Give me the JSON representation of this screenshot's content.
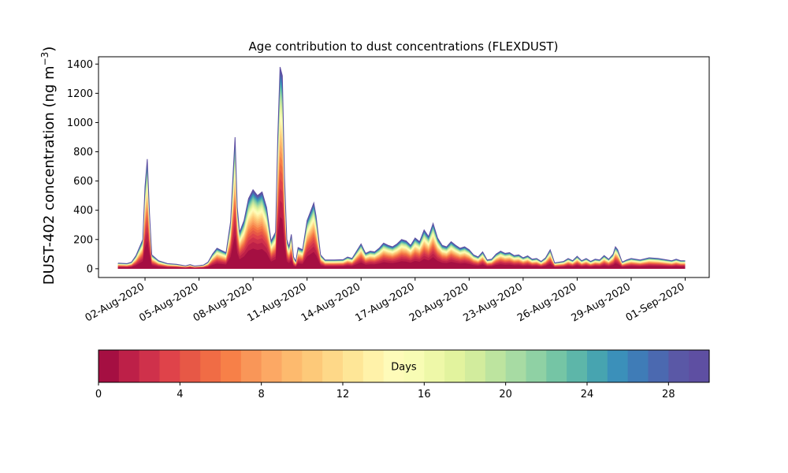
{
  "chart_data": {
    "type": "area",
    "stacked": true,
    "title": "Age contribution to dust concentrations (FLEXDUST)",
    "ylabel": "DUST-402 concentration (ng m",
    "ylabel_sup": "−3",
    "ylabel_close": ")",
    "ylim": [
      -60,
      1450
    ],
    "yticks": [
      "0",
      "200",
      "400",
      "600",
      "800",
      "1000",
      "1200",
      "1400"
    ],
    "xlim": [
      "2020-07-30T10:00",
      "2020-09-02T08:00"
    ],
    "xticks": [
      {
        "date": "2020-08-02",
        "label": "02-Aug-2020"
      },
      {
        "date": "2020-08-05",
        "label": "05-Aug-2020"
      },
      {
        "date": "2020-08-08",
        "label": "08-Aug-2020"
      },
      {
        "date": "2020-08-11",
        "label": "11-Aug-2020"
      },
      {
        "date": "2020-08-14",
        "label": "14-Aug-2020"
      },
      {
        "date": "2020-08-17",
        "label": "17-Aug-2020"
      },
      {
        "date": "2020-08-20",
        "label": "20-Aug-2020"
      },
      {
        "date": "2020-08-23",
        "label": "23-Aug-2020"
      },
      {
        "date": "2020-08-26",
        "label": "26-Aug-2020"
      },
      {
        "date": "2020-08-29",
        "label": "29-Aug-2020"
      },
      {
        "date": "2020-09-01",
        "label": "01-Sep-2020"
      }
    ],
    "total_series": [
      [
        "2020-07-31T12:00",
        38
      ],
      [
        "2020-08-01T00:00",
        35
      ],
      [
        "2020-08-01T06:00",
        45
      ],
      [
        "2020-08-01T12:00",
        90
      ],
      [
        "2020-08-01T21:00",
        200
      ],
      [
        "2020-08-02T00:00",
        560
      ],
      [
        "2020-08-02T03:00",
        750
      ],
      [
        "2020-08-02T06:00",
        380
      ],
      [
        "2020-08-02T09:00",
        95
      ],
      [
        "2020-08-02T18:00",
        55
      ],
      [
        "2020-08-03T06:00",
        35
      ],
      [
        "2020-08-03T18:00",
        30
      ],
      [
        "2020-08-04T06:00",
        20
      ],
      [
        "2020-08-04T12:00",
        28
      ],
      [
        "2020-08-04T18:00",
        18
      ],
      [
        "2020-08-05T06:00",
        25
      ],
      [
        "2020-08-05T12:00",
        45
      ],
      [
        "2020-08-05T18:00",
        100
      ],
      [
        "2020-08-06T00:00",
        140
      ],
      [
        "2020-08-06T06:00",
        125
      ],
      [
        "2020-08-06T12:00",
        110
      ],
      [
        "2020-08-06T18:00",
        320
      ],
      [
        "2020-08-06T21:00",
        610
      ],
      [
        "2020-08-07T00:00",
        900
      ],
      [
        "2020-08-07T03:00",
        420
      ],
      [
        "2020-08-07T06:00",
        250
      ],
      [
        "2020-08-07T12:00",
        330
      ],
      [
        "2020-08-07T18:00",
        480
      ],
      [
        "2020-08-08T00:00",
        540
      ],
      [
        "2020-08-08T06:00",
        500
      ],
      [
        "2020-08-08T12:00",
        525
      ],
      [
        "2020-08-08T18:00",
        420
      ],
      [
        "2020-08-09T00:00",
        190
      ],
      [
        "2020-08-09T06:00",
        250
      ],
      [
        "2020-08-09T09:00",
        900
      ],
      [
        "2020-08-09T12:00",
        1380
      ],
      [
        "2020-08-09T15:00",
        1320
      ],
      [
        "2020-08-09T18:00",
        620
      ],
      [
        "2020-08-09T21:00",
        200
      ],
      [
        "2020-08-10T00:00",
        150
      ],
      [
        "2020-08-10T03:00",
        235
      ],
      [
        "2020-08-10T06:00",
        80
      ],
      [
        "2020-08-10T09:00",
        50
      ],
      [
        "2020-08-10T12:00",
        145
      ],
      [
        "2020-08-10T18:00",
        130
      ],
      [
        "2020-08-11T00:00",
        330
      ],
      [
        "2020-08-11T06:00",
        410
      ],
      [
        "2020-08-11T09:00",
        450
      ],
      [
        "2020-08-11T12:00",
        360
      ],
      [
        "2020-08-11T18:00",
        95
      ],
      [
        "2020-08-12T00:00",
        60
      ],
      [
        "2020-08-12T12:00",
        60
      ],
      [
        "2020-08-13T00:00",
        62
      ],
      [
        "2020-08-13T06:00",
        80
      ],
      [
        "2020-08-13T12:00",
        70
      ],
      [
        "2020-08-13T18:00",
        120
      ],
      [
        "2020-08-14T00:00",
        170
      ],
      [
        "2020-08-14T06:00",
        105
      ],
      [
        "2020-08-14T12:00",
        120
      ],
      [
        "2020-08-14T18:00",
        115
      ],
      [
        "2020-08-15T00:00",
        140
      ],
      [
        "2020-08-15T06:00",
        175
      ],
      [
        "2020-08-15T12:00",
        160
      ],
      [
        "2020-08-15T18:00",
        150
      ],
      [
        "2020-08-16T00:00",
        170
      ],
      [
        "2020-08-16T06:00",
        200
      ],
      [
        "2020-08-16T12:00",
        190
      ],
      [
        "2020-08-16T18:00",
        160
      ],
      [
        "2020-08-17T00:00",
        210
      ],
      [
        "2020-08-17T06:00",
        185
      ],
      [
        "2020-08-17T12:00",
        265
      ],
      [
        "2020-08-17T18:00",
        220
      ],
      [
        "2020-08-18T00:00",
        310
      ],
      [
        "2020-08-18T06:00",
        210
      ],
      [
        "2020-08-18T12:00",
        160
      ],
      [
        "2020-08-18T18:00",
        150
      ],
      [
        "2020-08-19T00:00",
        185
      ],
      [
        "2020-08-19T06:00",
        160
      ],
      [
        "2020-08-19T12:00",
        140
      ],
      [
        "2020-08-19T18:00",
        150
      ],
      [
        "2020-08-20T00:00",
        130
      ],
      [
        "2020-08-20T06:00",
        95
      ],
      [
        "2020-08-20T12:00",
        80
      ],
      [
        "2020-08-20T18:00",
        115
      ],
      [
        "2020-08-21T00:00",
        60
      ],
      [
        "2020-08-21T06:00",
        65
      ],
      [
        "2020-08-21T12:00",
        100
      ],
      [
        "2020-08-21T18:00",
        120
      ],
      [
        "2020-08-22T00:00",
        105
      ],
      [
        "2020-08-22T06:00",
        110
      ],
      [
        "2020-08-22T12:00",
        90
      ],
      [
        "2020-08-22T18:00",
        95
      ],
      [
        "2020-08-23T00:00",
        75
      ],
      [
        "2020-08-23T06:00",
        88
      ],
      [
        "2020-08-23T12:00",
        65
      ],
      [
        "2020-08-23T18:00",
        70
      ],
      [
        "2020-08-24T00:00",
        50
      ],
      [
        "2020-08-24T06:00",
        75
      ],
      [
        "2020-08-24T12:00",
        130
      ],
      [
        "2020-08-24T18:00",
        40
      ],
      [
        "2020-08-25T06:00",
        50
      ],
      [
        "2020-08-25T12:00",
        70
      ],
      [
        "2020-08-25T18:00",
        55
      ],
      [
        "2020-08-26T00:00",
        85
      ],
      [
        "2020-08-26T06:00",
        55
      ],
      [
        "2020-08-26T12:00",
        70
      ],
      [
        "2020-08-26T18:00",
        50
      ],
      [
        "2020-08-27T00:00",
        65
      ],
      [
        "2020-08-27T06:00",
        60
      ],
      [
        "2020-08-27T12:00",
        90
      ],
      [
        "2020-08-27T18:00",
        65
      ],
      [
        "2020-08-28T00:00",
        100
      ],
      [
        "2020-08-28T03:00",
        150
      ],
      [
        "2020-08-28T06:00",
        130
      ],
      [
        "2020-08-28T12:00",
        45
      ],
      [
        "2020-08-28T18:00",
        60
      ],
      [
        "2020-08-29T00:00",
        70
      ],
      [
        "2020-08-29T12:00",
        60
      ],
      [
        "2020-08-30T00:00",
        75
      ],
      [
        "2020-08-30T12:00",
        70
      ],
      [
        "2020-08-31T00:00",
        60
      ],
      [
        "2020-08-31T06:00",
        55
      ],
      [
        "2020-08-31T12:00",
        65
      ],
      [
        "2020-08-31T18:00",
        55
      ],
      [
        "2020-09-01T00:00",
        55
      ]
    ],
    "colorbar": {
      "label": "Days",
      "range": [
        0,
        30
      ],
      "bins": 30,
      "ticks": [
        "0",
        "4",
        "8",
        "12",
        "16",
        "20",
        "24",
        "28"
      ],
      "colors": [
        "#a50f42",
        "#bd2048",
        "#cf314b",
        "#df434a",
        "#e75846",
        "#f06c45",
        "#f78048",
        "#f99658",
        "#fca864",
        "#fdba6e",
        "#fdc979",
        "#fed888",
        "#fee697",
        "#fff2a9",
        "#fefbb9",
        "#f8fcb4",
        "#eef8a8",
        "#e2f39e",
        "#d2ec9d",
        "#bde49f",
        "#a7dba3",
        "#8fd1a4",
        "#75c5a5",
        "#5db6a9",
        "#47a4b0",
        "#3b90ba",
        "#3f7cb7",
        "#4b69b0",
        "#5a58a6",
        "#5e4fa2"
      ]
    },
    "grid": false,
    "legend": "none"
  }
}
